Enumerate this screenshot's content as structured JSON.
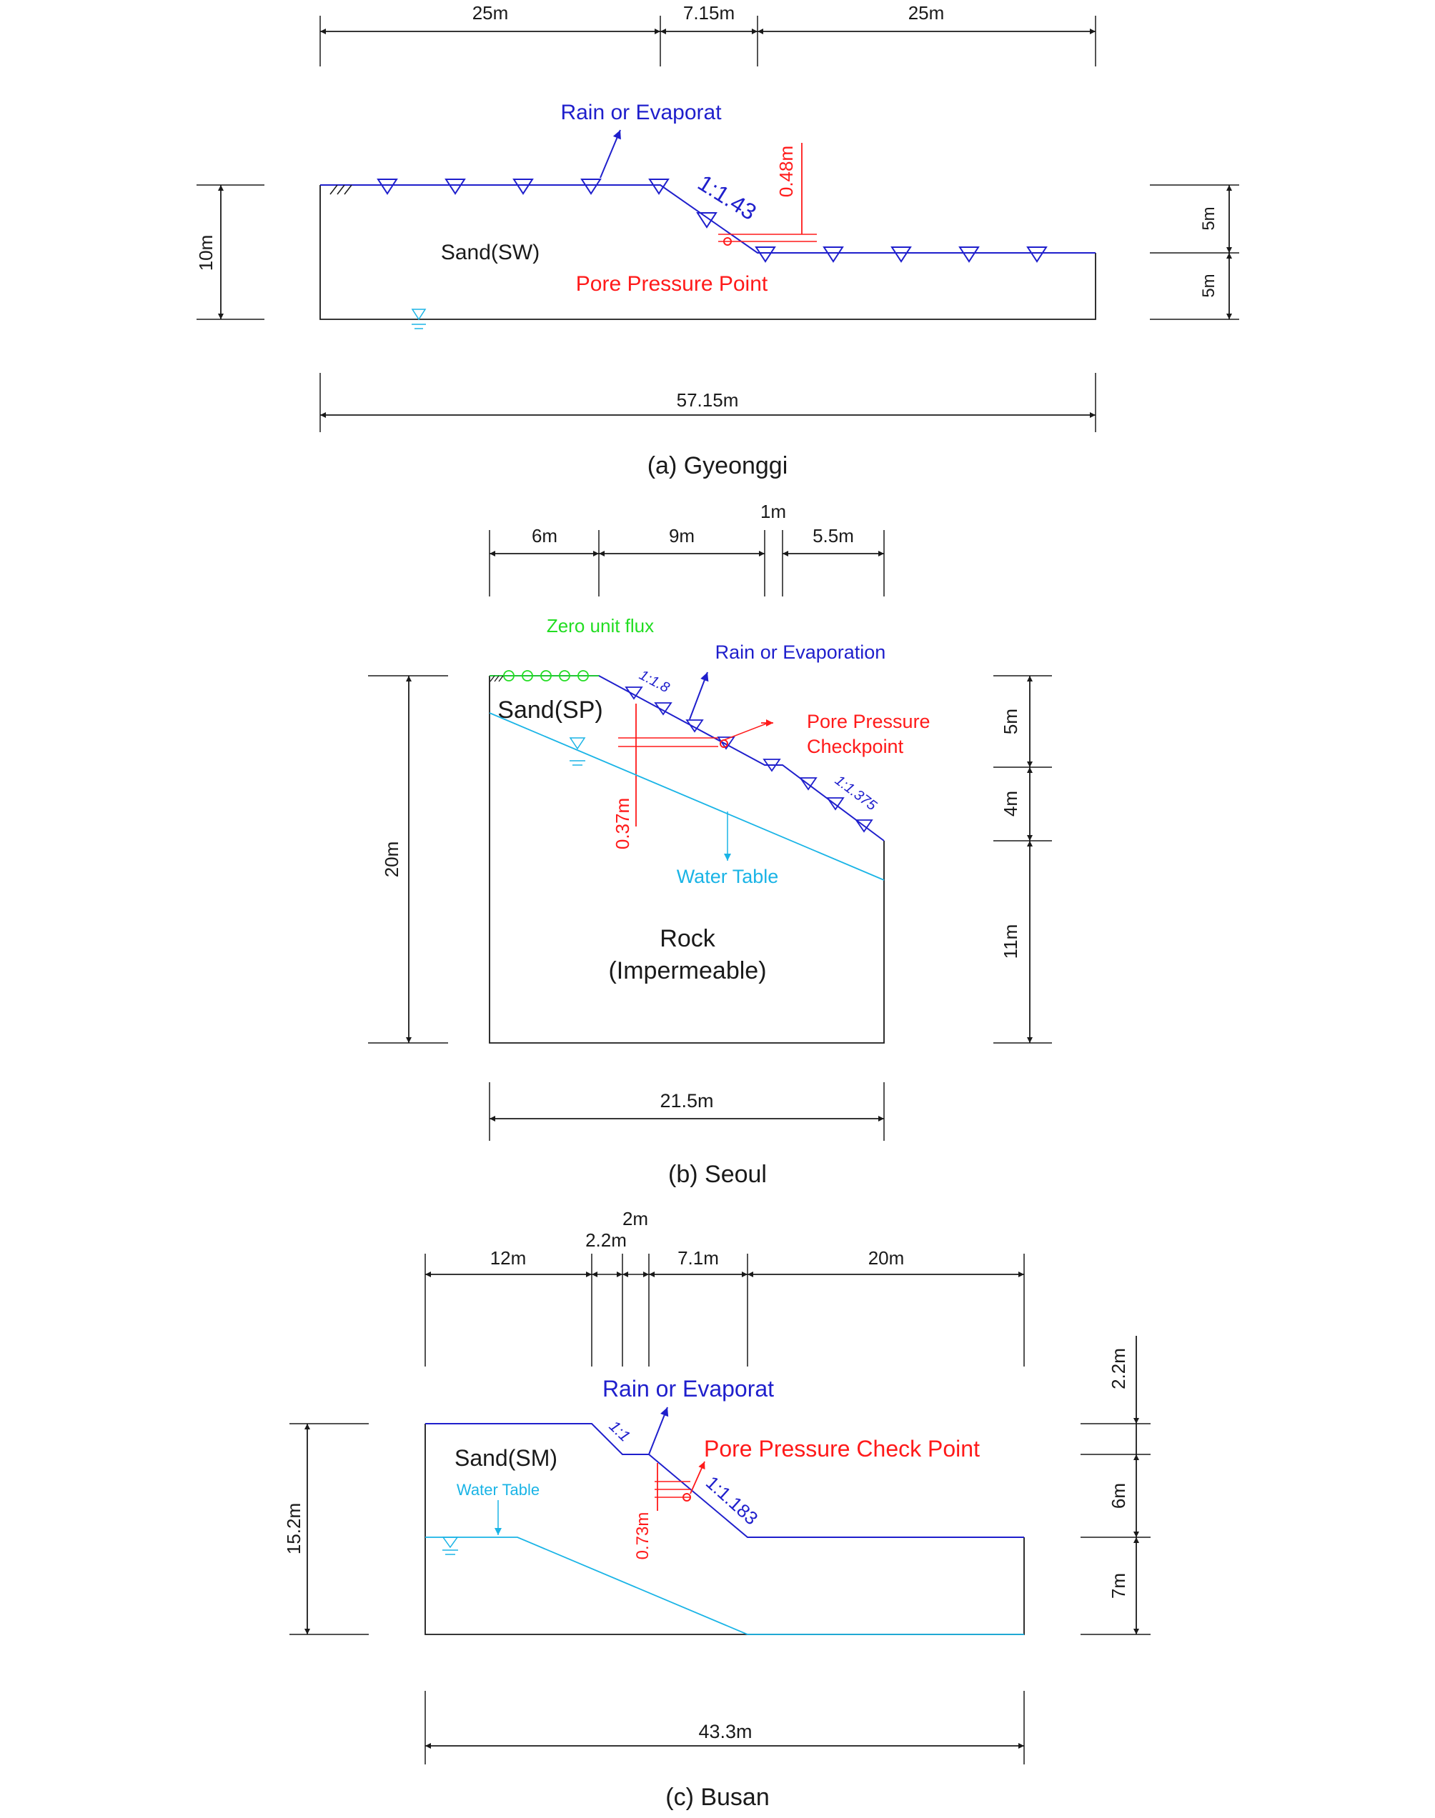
{
  "colors": {
    "outline": "#1a1a1a",
    "surface": "#1f1fcc",
    "annotation": "#ff1a1a",
    "water_table": "#1ab4e6",
    "zero_flux": "#22dd22"
  },
  "panel_a": {
    "caption": "(a)  Gyeonggi",
    "dims_top": [
      "25m",
      "7.15m",
      "25m"
    ],
    "dim_total": "57.15m",
    "dim_height": "10m",
    "dims_right": [
      "5m",
      "5m"
    ],
    "material": "Sand(SW)",
    "rain_label": "Rain or Evaporat",
    "slope_label": "1:1.43",
    "depth_label": "0.48m",
    "pore_label": "Pore Pressure Point"
  },
  "panel_b": {
    "caption": "(b)  Seoul",
    "dims_top": [
      "6m",
      "9m",
      "1m",
      "5.5m"
    ],
    "dim_total": "21.5m",
    "dim_height": "20m",
    "dims_right": [
      "5m",
      "4m",
      "11m"
    ],
    "material": "Sand(SP)",
    "zero_flux_label": "Zero unit flux",
    "rain_label": "Rain or Evaporation",
    "slope1_label": "1:1.8",
    "slope2_label": "1:1.375",
    "pore_label_1": "Pore Pressure",
    "pore_label_2": "Checkpoint",
    "depth_label": "0.37m",
    "water_table_label": "Water Table",
    "rock_label_1": "Rock",
    "rock_label_2": "(Impermeable)"
  },
  "panel_c": {
    "caption": "(c)  Busan",
    "dims_top": [
      "12m",
      "2.2m",
      "2m",
      "7.1m",
      "20m"
    ],
    "dim_total": "43.3m",
    "dim_height": "15.2m",
    "dims_right": [
      "2.2m",
      "6m",
      "7m"
    ],
    "material": "Sand(SM)",
    "rain_label": "Rain or Evaporat",
    "slope1_label": "1:1",
    "slope2_label": "1:1.183",
    "pore_label": "Pore Pressure Check Point",
    "depth_label": "0.73m",
    "water_table_label": "Water Table"
  }
}
